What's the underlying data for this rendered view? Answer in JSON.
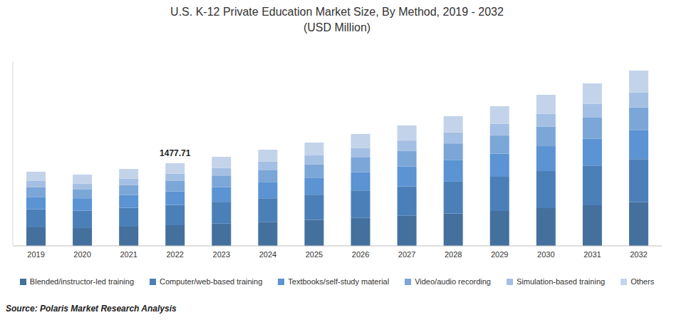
{
  "chart_data": {
    "type": "bar",
    "title": "U.S. K-12 Private Education Market Size, By Method, 2019 - 2032",
    "subtitle": "(USD Million)",
    "source": "Source: Polaris Market Research Analysis",
    "categories": [
      "2019",
      "2020",
      "2021",
      "2022",
      "2023",
      "2024",
      "2025",
      "2026",
      "2027",
      "2028",
      "2029",
      "2030",
      "2031",
      "2032"
    ],
    "series": [
      {
        "name": "Blended/instructor-led training",
        "color": "#44709d",
        "values": [
          331,
          319,
          344,
          369.4,
          398,
          430,
          462,
          500,
          538,
          580,
          624,
          675,
          726,
          784
        ]
      },
      {
        "name": "Computer/web-based training",
        "color": "#4b7fb8",
        "values": [
          325,
          312,
          337,
          362.0,
          390,
          421,
          453,
          490,
          527,
          568,
          612,
          662,
          712,
          768
        ]
      },
      {
        "name": "Textbooks/self-study material",
        "color": "#5b93d3",
        "values": [
          219,
          210,
          227,
          243.8,
          263,
          284,
          305,
          330,
          355,
          383,
          412,
          446,
          479,
          517
        ]
      },
      {
        "name": "Video/audio recording",
        "color": "#7ba6d8",
        "values": [
          172,
          166,
          179,
          192.1,
          207,
          224,
          240,
          260,
          280,
          301,
          325,
          351,
          378,
          407
        ]
      },
      {
        "name": "Simulation-based training",
        "color": "#a3bfe3",
        "values": [
          113,
          108,
          117,
          125.6,
          135,
          146,
          157,
          170,
          183,
          197,
          212,
          230,
          247,
          266
        ]
      },
      {
        "name": "Others",
        "color": "#c3d3ea",
        "values": [
          166,
          159,
          172,
          184.81,
          200,
          215,
          230,
          250,
          270,
          290,
          312,
          337,
          363,
          392
        ]
      }
    ],
    "annotations": [
      {
        "text": "1477.71",
        "x": "2022",
        "y": 1477.71
      }
    ],
    "ylim": [
      0,
      3300
    ],
    "stacked": true,
    "tick_labels": "x",
    "grid": false
  }
}
